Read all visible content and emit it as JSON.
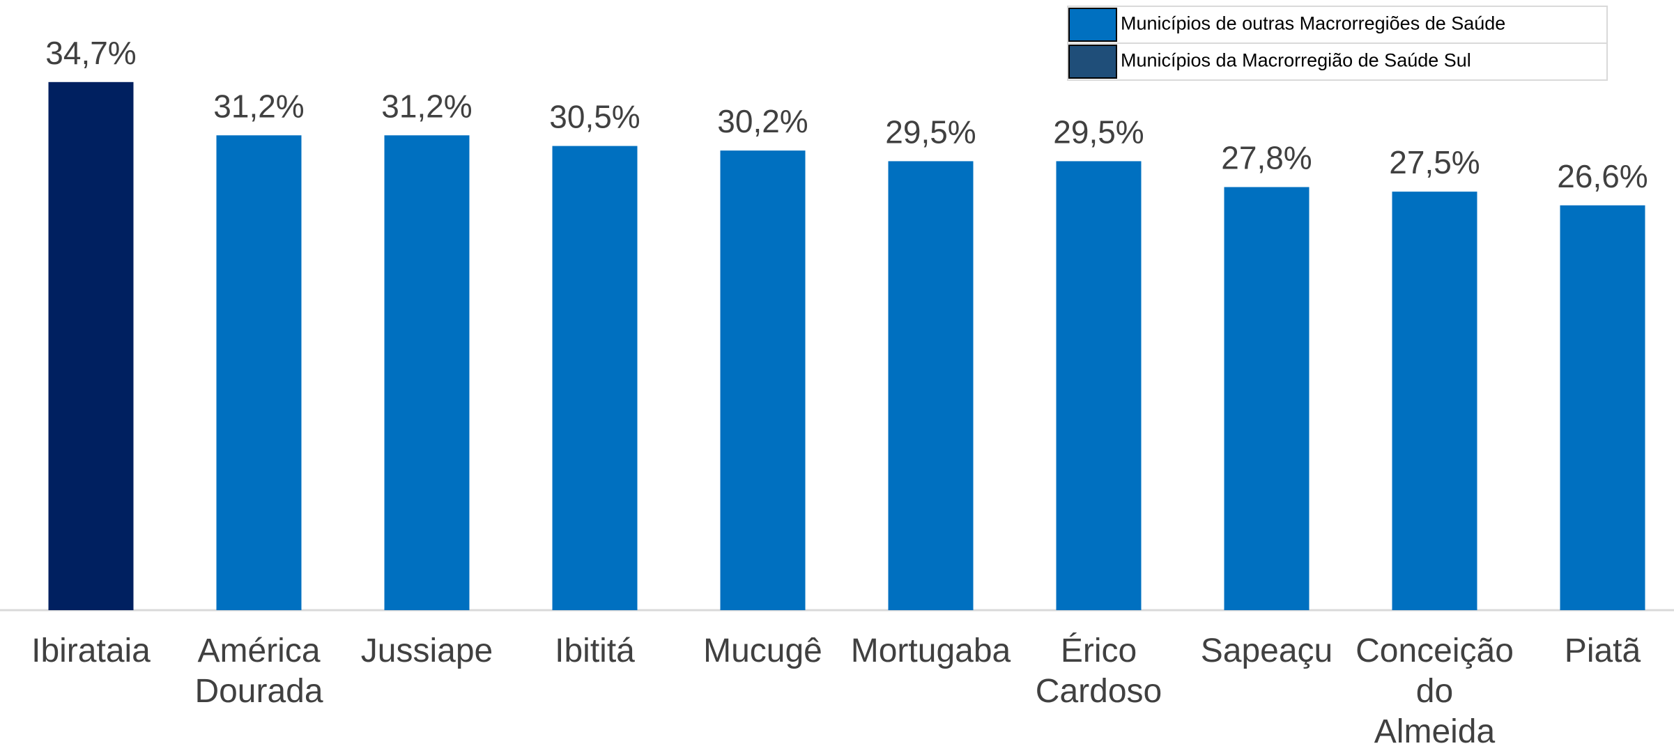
{
  "chart_data": {
    "type": "bar",
    "categories": [
      "Ibirataia",
      "América Dourada",
      "Jussiape",
      "Ibititá",
      "Mucugê",
      "Mortugaba",
      "Érico Cardoso",
      "Sapeaçu",
      "Conceição do Almeida",
      "Piatã"
    ],
    "values": [
      34.7,
      31.2,
      31.2,
      30.5,
      30.2,
      29.5,
      29.5,
      27.8,
      27.5,
      26.6
    ],
    "value_labels": [
      "34,7%",
      "31,2%",
      "31,2%",
      "30,5%",
      "30,2%",
      "29,5%",
      "29,5%",
      "27,8%",
      "27,5%",
      "26,6%"
    ],
    "colors": [
      "#002060",
      "#0070c0",
      "#0070c0",
      "#0070c0",
      "#0070c0",
      "#0070c0",
      "#0070c0",
      "#0070c0",
      "#0070c0",
      "#0070c0"
    ],
    "legend": [
      {
        "name": "Municípios de outras Macrorregiões de Saúde",
        "color": "#0070c0"
      },
      {
        "name": "Municípios da Macrorregião de Saúde Sul",
        "color": "#1f4e79"
      }
    ],
    "ylim": [
      0,
      40
    ]
  }
}
